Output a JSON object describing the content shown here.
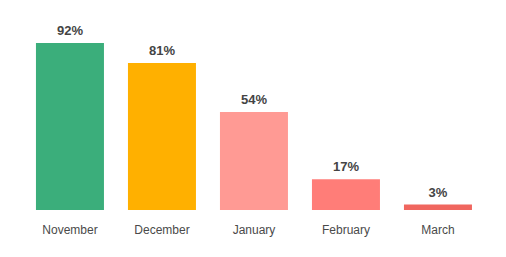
{
  "chart_data": {
    "type": "bar",
    "categories": [
      "November",
      "December",
      "January",
      "February",
      "March"
    ],
    "values": [
      92,
      81,
      54,
      17,
      3
    ],
    "value_labels": [
      "92%",
      "81%",
      "54%",
      "17%",
      "3%"
    ],
    "colors": [
      "#3bae7b",
      "#ffb000",
      "#ff9a94",
      "#ff7d78",
      "#f0665f"
    ],
    "data_labels": true,
    "tick_labels": "x",
    "grid": false
  }
}
